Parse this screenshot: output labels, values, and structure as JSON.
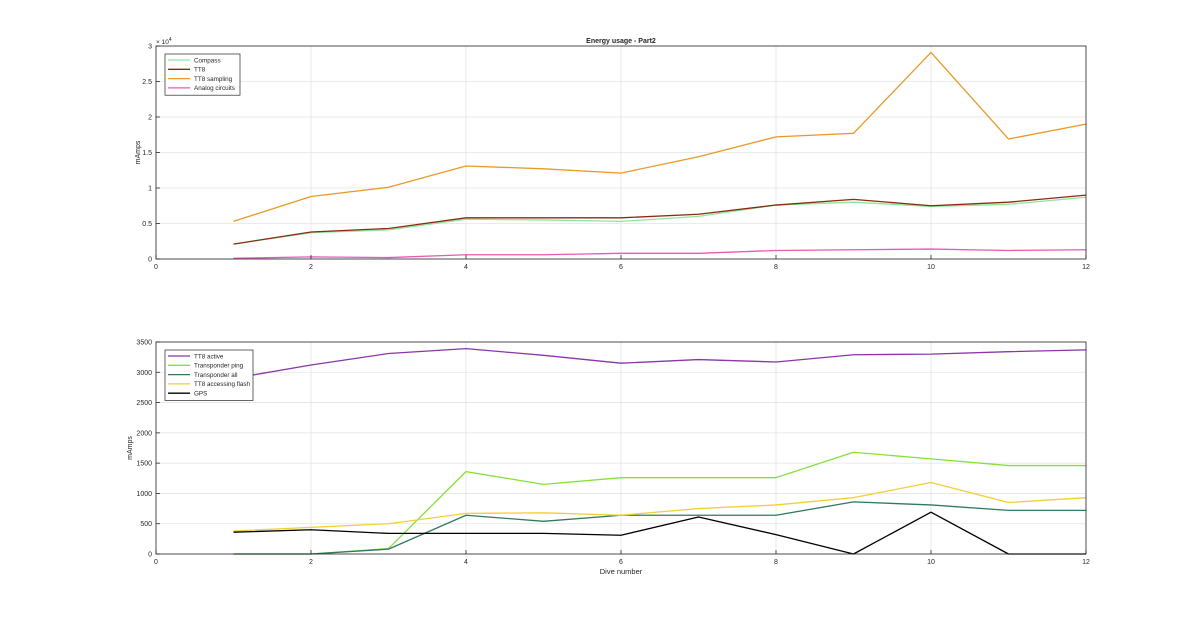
{
  "chart_data": [
    {
      "type": "line",
      "title": "Energy usage - Part2",
      "xlabel": "",
      "ylabel": "mAmps",
      "exponent_label": "× 10",
      "exponent_power": "4",
      "xlim": [
        0,
        12
      ],
      "ylim": [
        0,
        3
      ],
      "xticks": [
        "0",
        "2",
        "4",
        "6",
        "8",
        "10",
        "12"
      ],
      "yticks": [
        "0",
        "0.5",
        "1",
        "1.5",
        "2",
        "2.5",
        "3"
      ],
      "grid": true,
      "legend_position": "top-left",
      "x": [
        1,
        2,
        3,
        4,
        5,
        6,
        7,
        8,
        9,
        10,
        11,
        12
      ],
      "series": [
        {
          "name": "Compass",
          "color": "#8ee6a0",
          "values": [
            0.21,
            0.37,
            0.41,
            0.56,
            0.55,
            0.53,
            0.6,
            0.76,
            0.8,
            0.74,
            0.77,
            0.87
          ]
        },
        {
          "name": "TT8",
          "color": "#8b2a0e",
          "values": [
            0.21,
            0.38,
            0.43,
            0.58,
            0.58,
            0.58,
            0.63,
            0.76,
            0.84,
            0.75,
            0.8,
            0.9
          ]
        },
        {
          "name": "TT8 sampling",
          "color": "#e89a28",
          "values": [
            0.53,
            0.88,
            1.01,
            1.31,
            1.27,
            1.21,
            1.44,
            1.72,
            1.77,
            2.91,
            1.69,
            1.9
          ]
        },
        {
          "name": "Analog circuits",
          "color": "#e85ab4",
          "values": [
            0.01,
            0.03,
            0.02,
            0.06,
            0.06,
            0.08,
            0.08,
            0.12,
            0.13,
            0.14,
            0.12,
            0.13
          ]
        }
      ]
    },
    {
      "type": "line",
      "title": "",
      "xlabel": "Dive number",
      "ylabel": "mAmps",
      "xlim": [
        0,
        12
      ],
      "ylim": [
        0,
        3500
      ],
      "xticks": [
        "0",
        "2",
        "4",
        "6",
        "8",
        "10",
        "12"
      ],
      "yticks": [
        "0",
        "500",
        "1000",
        "1500",
        "2000",
        "2500",
        "3000",
        "3500"
      ],
      "grid": true,
      "legend_position": "top-left",
      "x": [
        1,
        2,
        3,
        4,
        5,
        6,
        7,
        8,
        9,
        10,
        11,
        12
      ],
      "series": [
        {
          "name": "TT8 active",
          "color": "#8b35a8",
          "values": [
            2900,
            3120,
            3310,
            3390,
            3280,
            3150,
            3210,
            3170,
            3290,
            3300,
            3340,
            3370
          ]
        },
        {
          "name": "Transponder ping",
          "color": "#86e03a",
          "values": [
            0,
            0,
            90,
            1360,
            1150,
            1260,
            1260,
            1260,
            1680,
            1570,
            1460,
            1460
          ]
        },
        {
          "name": "Transponder all",
          "color": "#2e7a60",
          "values": [
            0,
            0,
            80,
            640,
            540,
            640,
            640,
            640,
            860,
            810,
            720,
            720
          ]
        },
        {
          "name": "TT8 accessing flash",
          "color": "#f2cf34",
          "values": [
            380,
            440,
            500,
            670,
            680,
            640,
            750,
            810,
            930,
            1180,
            850,
            930
          ]
        },
        {
          "name": "GPS",
          "color": "#000000",
          "values": [
            360,
            400,
            340,
            340,
            340,
            310,
            610,
            320,
            0,
            690,
            0,
            0
          ]
        }
      ]
    }
  ]
}
